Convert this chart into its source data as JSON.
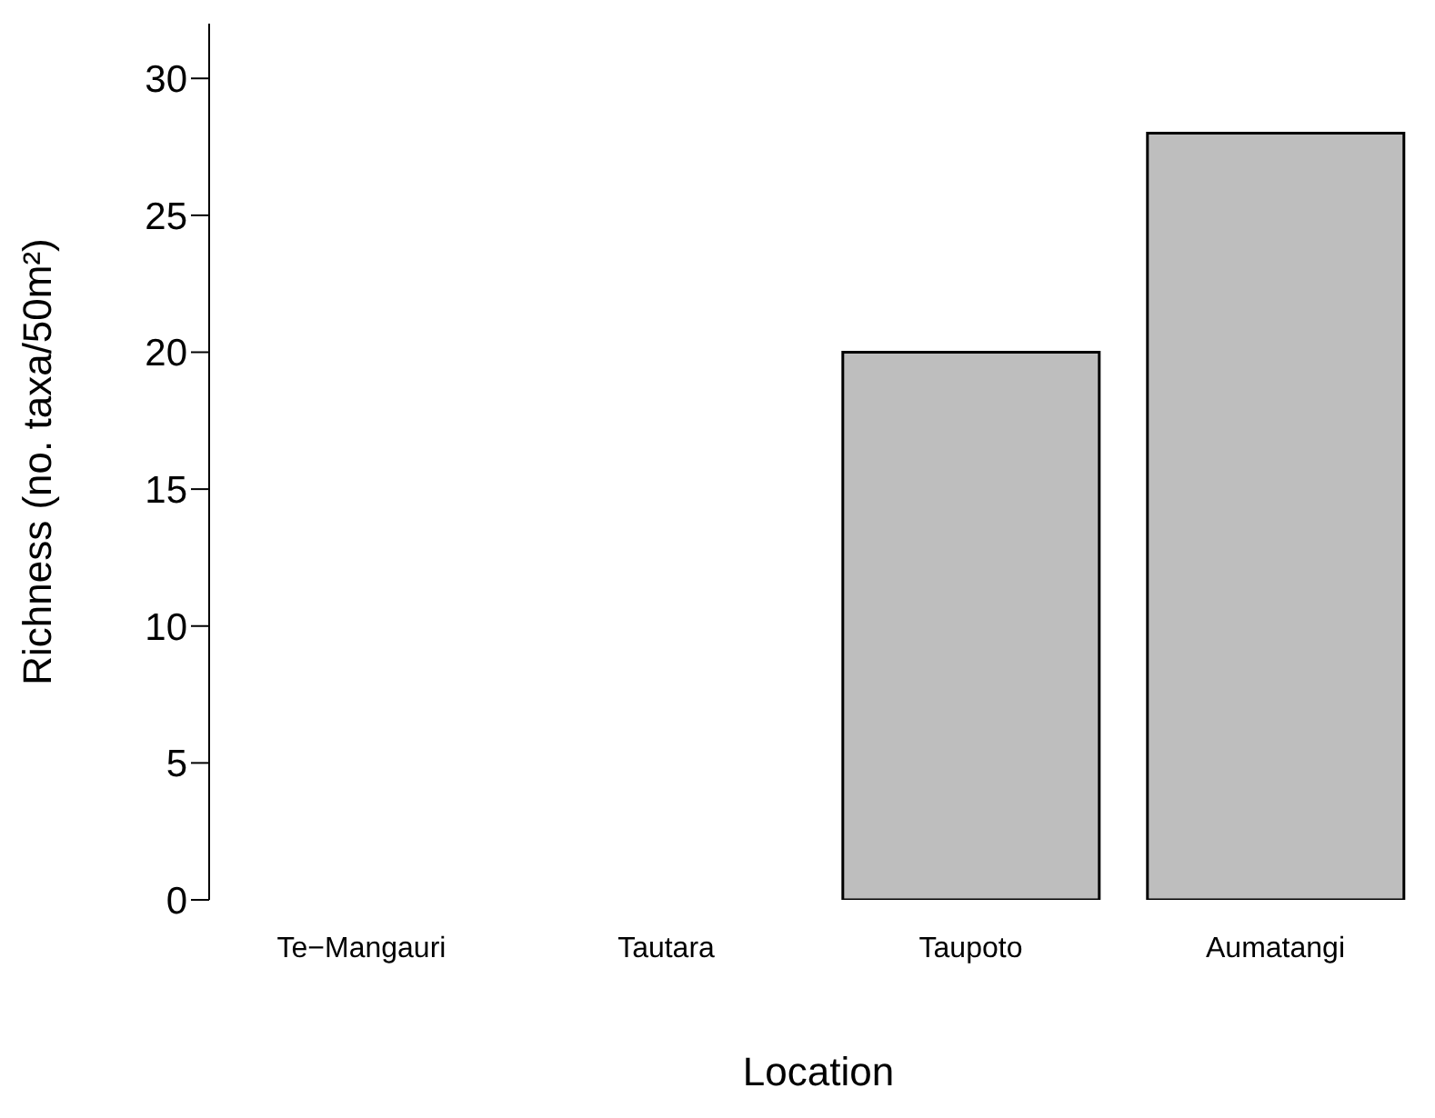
{
  "chart_data": {
    "type": "bar",
    "xlabel": "Location",
    "ylabel": "Richness (no. taxa/50m²)",
    "categories": [
      "Te−Mangauri",
      "Tautara",
      "Taupoto",
      "Aumatangi"
    ],
    "values": [
      null,
      null,
      20,
      28
    ],
    "color": "#bebebe",
    "ylim": [
      0,
      32
    ],
    "yticks": [
      0,
      5,
      10,
      15,
      20,
      25,
      30
    ]
  }
}
